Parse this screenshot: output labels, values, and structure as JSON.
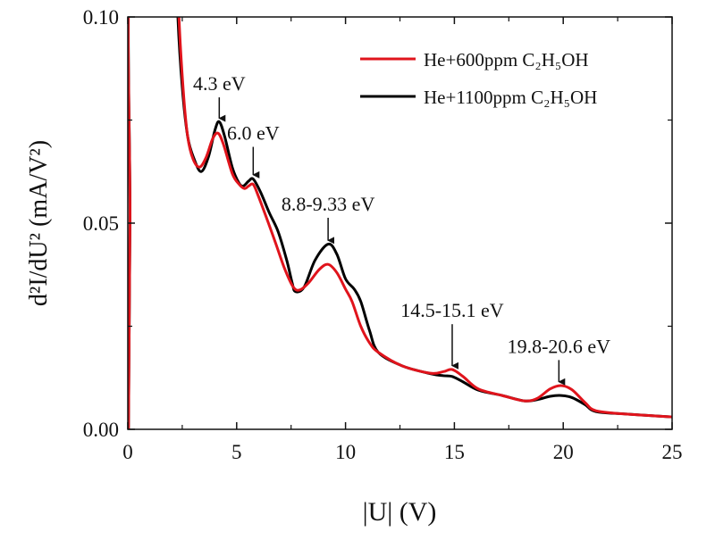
{
  "chart_data": {
    "type": "line",
    "title": "",
    "xlabel": "|U| (V)",
    "ylabel": "d²I/dU² (mA/V²)",
    "xlim": [
      0,
      25
    ],
    "ylim": [
      0,
      0.1
    ],
    "xticks": [
      0,
      5,
      10,
      15,
      20,
      25
    ],
    "xtick_labels": [
      "0",
      "5",
      "10",
      "15",
      "20",
      "25"
    ],
    "yticks": [
      0,
      0.05,
      0.1
    ],
    "ytick_labels": [
      "0.00",
      "0.05",
      "0.10"
    ],
    "grid": false,
    "legend_position": "top-right",
    "series": [
      {
        "name": "He+600ppm C₂H₅OH",
        "color": "#e0141c",
        "points": [
          [
            0.03,
            0
          ],
          [
            0.1,
            0.05
          ],
          [
            0.2,
            0.12
          ],
          [
            2.25,
            0.12
          ],
          [
            2.35,
            0.1
          ],
          [
            2.55,
            0.082
          ],
          [
            2.75,
            0.071
          ],
          [
            3.0,
            0.0655
          ],
          [
            3.3,
            0.0636
          ],
          [
            3.6,
            0.066
          ],
          [
            3.9,
            0.0705
          ],
          [
            4.15,
            0.0718
          ],
          [
            4.4,
            0.069
          ],
          [
            4.8,
            0.062
          ],
          [
            5.1,
            0.0595
          ],
          [
            5.35,
            0.0584
          ],
          [
            5.55,
            0.059
          ],
          [
            5.76,
            0.0594
          ],
          [
            6.0,
            0.0565
          ],
          [
            6.46,
            0.05
          ],
          [
            6.8,
            0.045
          ],
          [
            7.2,
            0.039
          ],
          [
            7.6,
            0.0345
          ],
          [
            7.9,
            0.0338
          ],
          [
            8.3,
            0.0355
          ],
          [
            8.8,
            0.0388
          ],
          [
            9.2,
            0.04
          ],
          [
            9.6,
            0.038
          ],
          [
            10.0,
            0.034
          ],
          [
            10.3,
            0.031
          ],
          [
            10.7,
            0.025
          ],
          [
            11.1,
            0.021
          ],
          [
            11.5,
            0.0187
          ],
          [
            12.6,
            0.0154
          ],
          [
            13.9,
            0.0136
          ],
          [
            14.5,
            0.014
          ],
          [
            14.9,
            0.0145
          ],
          [
            15.4,
            0.0128
          ],
          [
            16.1,
            0.0098
          ],
          [
            17.2,
            0.0082
          ],
          [
            18.2,
            0.0069
          ],
          [
            18.8,
            0.0075
          ],
          [
            19.4,
            0.0098
          ],
          [
            19.9,
            0.0106
          ],
          [
            20.4,
            0.0096
          ],
          [
            21.0,
            0.0065
          ],
          [
            21.5,
            0.0045
          ],
          [
            22.9,
            0.0037
          ],
          [
            25,
            0.003
          ]
        ]
      },
      {
        "name": "He+1100ppm C₂H₅OH",
        "color": "#000000",
        "points": [
          [
            0.03,
            0
          ],
          [
            0.1,
            0.05
          ],
          [
            0.2,
            0.12
          ],
          [
            2.2,
            0.12
          ],
          [
            2.3,
            0.1
          ],
          [
            2.5,
            0.083
          ],
          [
            2.75,
            0.071
          ],
          [
            3.05,
            0.0655
          ],
          [
            3.37,
            0.0625
          ],
          [
            3.7,
            0.066
          ],
          [
            4.0,
            0.0725
          ],
          [
            4.2,
            0.0746
          ],
          [
            4.45,
            0.071
          ],
          [
            4.8,
            0.0635
          ],
          [
            5.1,
            0.0598
          ],
          [
            5.3,
            0.059
          ],
          [
            5.55,
            0.0602
          ],
          [
            5.76,
            0.0607
          ],
          [
            6.1,
            0.0575
          ],
          [
            6.5,
            0.0525
          ],
          [
            6.9,
            0.048
          ],
          [
            7.3,
            0.041
          ],
          [
            7.55,
            0.0355
          ],
          [
            7.7,
            0.0334
          ],
          [
            8.1,
            0.0345
          ],
          [
            8.6,
            0.041
          ],
          [
            9.2,
            0.0449
          ],
          [
            9.6,
            0.0425
          ],
          [
            10.0,
            0.0365
          ],
          [
            10.4,
            0.034
          ],
          [
            10.7,
            0.031
          ],
          [
            11.1,
            0.024
          ],
          [
            11.5,
            0.0187
          ],
          [
            12.6,
            0.0154
          ],
          [
            13.9,
            0.0135
          ],
          [
            14.5,
            0.013
          ],
          [
            14.9,
            0.0128
          ],
          [
            15.4,
            0.0115
          ],
          [
            16.1,
            0.0095
          ],
          [
            17.2,
            0.0082
          ],
          [
            18.2,
            0.0069
          ],
          [
            18.8,
            0.0072
          ],
          [
            19.4,
            0.008
          ],
          [
            19.9,
            0.0082
          ],
          [
            20.4,
            0.0077
          ],
          [
            21.0,
            0.006
          ],
          [
            21.5,
            0.0043
          ],
          [
            22.9,
            0.0037
          ],
          [
            25,
            0.003
          ]
        ]
      }
    ],
    "annotations": [
      {
        "text": "4.3 eV",
        "arrow_x": 4.2,
        "arrow_from": 0.0805,
        "arrow_to": 0.0752
      },
      {
        "text": "6.0 eV",
        "arrow_x": 5.76,
        "arrow_from": 0.0685,
        "arrow_to": 0.0615
      },
      {
        "text": "8.8-9.33 eV",
        "arrow_x": 9.2,
        "arrow_from": 0.0513,
        "arrow_to": 0.0456
      },
      {
        "text": "14.5-15.1 eV",
        "arrow_x": 14.9,
        "arrow_from": 0.0255,
        "arrow_to": 0.0152
      },
      {
        "text": "19.8-20.6 eV",
        "arrow_x": 19.8,
        "arrow_from": 0.0168,
        "arrow_to": 0.0113
      }
    ]
  }
}
